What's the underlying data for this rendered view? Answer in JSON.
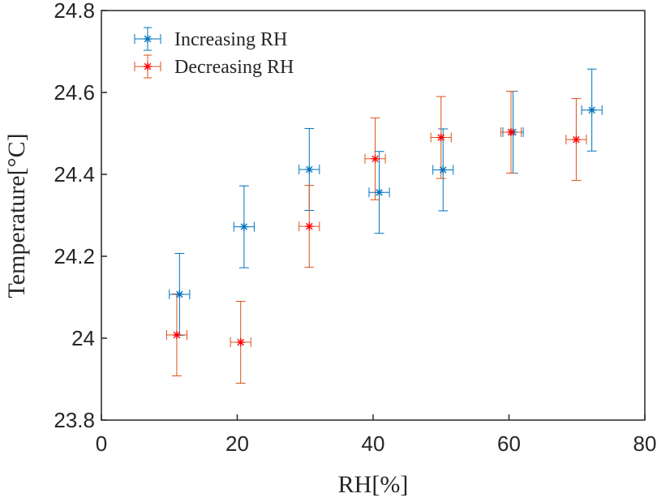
{
  "chart_data": {
    "type": "scatter",
    "xlabel": "RH[%]",
    "ylabel": "Temperature[°C]",
    "xlim": [
      0,
      80
    ],
    "ylim": [
      23.8,
      24.8
    ],
    "xticks": [
      "0",
      "20",
      "40",
      "60",
      "80"
    ],
    "yticks": [
      "23.8",
      "24",
      "24.2",
      "24.4",
      "24.6",
      "24.8"
    ],
    "grid": false,
    "legend_position": "top-left",
    "series": [
      {
        "name": "Increasing RH",
        "color": "#0072BD",
        "marker_color": "#0072BD",
        "points": [
          {
            "x": 11.5,
            "y": 24.107,
            "xerr": 1.5,
            "yerr": 0.1
          },
          {
            "x": 21.0,
            "y": 24.272,
            "xerr": 1.5,
            "yerr": 0.1
          },
          {
            "x": 30.6,
            "y": 24.412,
            "xerr": 1.5,
            "yerr": 0.1
          },
          {
            "x": 40.9,
            "y": 24.356,
            "xerr": 1.5,
            "yerr": 0.1
          },
          {
            "x": 50.3,
            "y": 24.411,
            "xerr": 1.5,
            "yerr": 0.1
          },
          {
            "x": 60.6,
            "y": 24.503,
            "xerr": 1.5,
            "yerr": 0.1
          },
          {
            "x": 72.2,
            "y": 24.557,
            "xerr": 1.5,
            "yerr": 0.1
          }
        ]
      },
      {
        "name": "Decreasing RH",
        "color": "#D95319",
        "marker_color": "#FF0000",
        "points": [
          {
            "x": 11.1,
            "y": 24.008,
            "xerr": 1.5,
            "yerr": 0.1
          },
          {
            "x": 20.5,
            "y": 23.99,
            "xerr": 1.5,
            "yerr": 0.1
          },
          {
            "x": 30.6,
            "y": 24.273,
            "xerr": 1.5,
            "yerr": 0.1
          },
          {
            "x": 40.3,
            "y": 24.438,
            "xerr": 1.5,
            "yerr": 0.1
          },
          {
            "x": 50.0,
            "y": 24.49,
            "xerr": 1.5,
            "yerr": 0.1
          },
          {
            "x": 60.3,
            "y": 24.503,
            "xerr": 1.5,
            "yerr": 0.1
          },
          {
            "x": 69.9,
            "y": 24.485,
            "xerr": 1.5,
            "yerr": 0.1
          }
        ]
      }
    ]
  }
}
